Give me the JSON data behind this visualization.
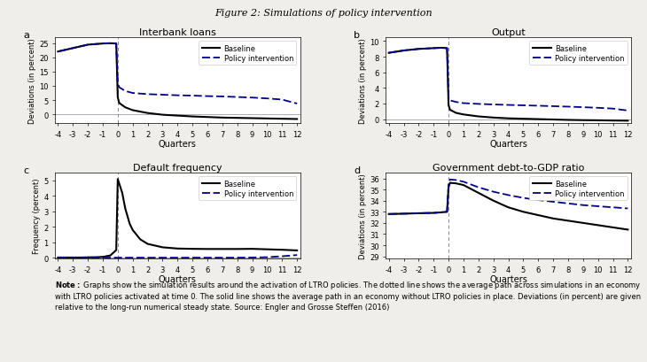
{
  "title": "Figure 2: Simulations of policy intervention",
  "panels": [
    "a",
    "b",
    "c",
    "d"
  ],
  "panel_titles": [
    "Interbank loans",
    "Output",
    "Default frequency",
    "Government debt-to-GDP ratio"
  ],
  "xlabel": "Quarters",
  "ylabels": [
    "Deviations (in percent)",
    "Deviations (in percent)",
    "Frequency (percent)",
    "Deviations (in percent)"
  ],
  "x_range": [
    -4,
    12
  ],
  "legend_labels": [
    "Baseline",
    "Policy intervention"
  ],
  "panel_a": {
    "ylim": [
      -3,
      27
    ],
    "yticks": [
      0,
      5,
      10,
      15,
      20,
      25
    ],
    "baseline_x": [
      -4,
      -3,
      -2,
      -1,
      -0.5,
      -0.1,
      0,
      0.1,
      0.5,
      1,
      2,
      3,
      4,
      5,
      6,
      7,
      8,
      9,
      10,
      11,
      12
    ],
    "baseline_y": [
      22.0,
      23.2,
      24.4,
      24.8,
      24.9,
      24.8,
      6.0,
      4.0,
      2.5,
      1.5,
      0.5,
      -0.1,
      -0.4,
      -0.7,
      -0.9,
      -1.1,
      -1.2,
      -1.3,
      -1.4,
      -1.5,
      -1.6
    ],
    "policy_x": [
      -4,
      -3,
      -2,
      -1,
      -0.5,
      -0.1,
      0,
      0.1,
      0.5,
      1,
      2,
      3,
      4,
      5,
      6,
      7,
      8,
      9,
      10,
      11,
      12
    ],
    "policy_y": [
      22.0,
      23.2,
      24.4,
      24.8,
      24.9,
      24.8,
      11.0,
      9.5,
      8.2,
      7.5,
      7.1,
      6.9,
      6.7,
      6.6,
      6.4,
      6.3,
      6.1,
      5.9,
      5.6,
      5.2,
      3.8
    ]
  },
  "panel_b": {
    "ylim": [
      -0.5,
      10.5
    ],
    "yticks": [
      0,
      2,
      4,
      6,
      8,
      10
    ],
    "baseline_x": [
      -4,
      -3,
      -2,
      -1,
      -0.5,
      -0.1,
      0,
      0.1,
      0.5,
      1,
      2,
      3,
      4,
      5,
      6,
      7,
      8,
      9,
      10,
      11,
      12
    ],
    "baseline_y": [
      8.5,
      8.8,
      9.0,
      9.1,
      9.15,
      9.1,
      1.8,
      1.2,
      0.8,
      0.6,
      0.35,
      0.2,
      0.1,
      0.05,
      0.0,
      -0.05,
      -0.1,
      -0.13,
      -0.15,
      -0.18,
      -0.2
    ],
    "policy_x": [
      -4,
      -3,
      -2,
      -1,
      -0.5,
      -0.1,
      0,
      0.1,
      0.5,
      1,
      2,
      3,
      4,
      5,
      6,
      7,
      8,
      9,
      10,
      11,
      12
    ],
    "policy_y": [
      8.5,
      8.8,
      9.0,
      9.1,
      9.15,
      9.1,
      2.8,
      2.4,
      2.2,
      2.05,
      1.95,
      1.88,
      1.82,
      1.77,
      1.72,
      1.66,
      1.6,
      1.53,
      1.45,
      1.35,
      1.1
    ]
  },
  "panel_c": {
    "ylim": [
      -0.05,
      5.5
    ],
    "yticks": [
      0,
      1,
      2,
      3,
      4,
      5
    ],
    "baseline_x": [
      -4,
      -3.5,
      -3,
      -2.5,
      -2,
      -1.5,
      -1,
      -0.5,
      -0.1,
      0,
      0.3,
      0.5,
      0.8,
      1,
      1.5,
      2,
      3,
      4,
      5,
      6,
      7,
      8,
      9,
      10,
      11,
      12
    ],
    "baseline_y": [
      0.02,
      0.02,
      0.02,
      0.02,
      0.03,
      0.04,
      0.06,
      0.15,
      0.5,
      5.1,
      4.2,
      3.2,
      2.2,
      1.8,
      1.2,
      0.9,
      0.68,
      0.6,
      0.58,
      0.57,
      0.57,
      0.57,
      0.58,
      0.55,
      0.52,
      0.48
    ],
    "policy_x": [
      -4,
      -3,
      -2,
      -1,
      0,
      1,
      2,
      3,
      4,
      5,
      6,
      7,
      8,
      9,
      10,
      11,
      12
    ],
    "policy_y": [
      0.01,
      0.01,
      0.01,
      0.01,
      0.01,
      0.01,
      0.01,
      0.01,
      0.01,
      0.01,
      0.01,
      0.01,
      0.01,
      0.02,
      0.04,
      0.1,
      0.18
    ]
  },
  "panel_d": {
    "ylim": [
      28.8,
      36.5
    ],
    "yticks": [
      29,
      30,
      31,
      32,
      33,
      34,
      35,
      36
    ],
    "baseline_x": [
      -4,
      -3,
      -2,
      -1,
      -0.5,
      -0.1,
      0,
      0.1,
      0.5,
      1,
      2,
      3,
      4,
      5,
      6,
      7,
      8,
      9,
      10,
      11,
      12
    ],
    "baseline_y": [
      32.8,
      32.83,
      32.87,
      32.9,
      32.95,
      33.0,
      35.2,
      35.6,
      35.55,
      35.4,
      34.7,
      34.0,
      33.4,
      33.0,
      32.7,
      32.4,
      32.2,
      32.0,
      31.8,
      31.6,
      31.4
    ],
    "policy_x": [
      -4,
      -3,
      -2,
      -1,
      -0.5,
      -0.1,
      0,
      0.1,
      0.5,
      1,
      2,
      3,
      4,
      5,
      6,
      7,
      8,
      9,
      10,
      11,
      12
    ],
    "policy_y": [
      32.8,
      32.83,
      32.87,
      32.9,
      32.95,
      33.0,
      35.5,
      35.9,
      35.85,
      35.7,
      35.2,
      34.8,
      34.5,
      34.25,
      34.05,
      33.9,
      33.75,
      33.6,
      33.5,
      33.4,
      33.3
    ]
  },
  "baseline_color": "#000000",
  "policy_color": "#00008B",
  "baseline_lw": 1.5,
  "policy_lw": 1.3,
  "background_color": "#f0eeeb",
  "plot_bg": "#ffffff",
  "title_fontsize": 8,
  "panel_title_fontsize": 8,
  "axis_label_fontsize": 6,
  "tick_fontsize": 6,
  "legend_fontsize": 6,
  "note_bold": "Note:",
  "note_rest": " Graphs show the simulation results around the activation of LTRO policies. The dotted line shows the average path across simulations in an economy with LTRO policies activated at time 0. The solid line shows the average path in an economy without LTRO policies in place. Deviations (in percent) are given relative to the long-run numerical steady state. Source: Engler and Grosse Steffen (2016)"
}
